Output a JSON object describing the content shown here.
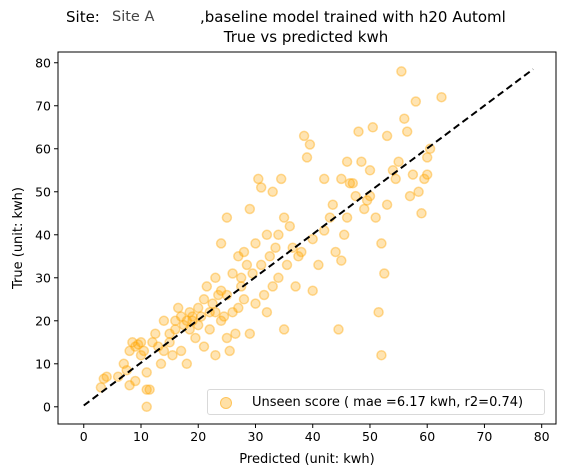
{
  "title": {
    "prefix": "Site:",
    "site_name": "Site A",
    "suffix": ",baseline model trained with h20 Automl",
    "line2": "True vs predicted kwh"
  },
  "colors": {
    "points": "#ffa500",
    "reference_line": "#000000"
  },
  "chart_data": {
    "type": "scatter",
    "xlabel": "Predicted (unit: kwh)",
    "ylabel": "True (unit: kwh)",
    "xlim": [
      -4.5,
      82.5
    ],
    "ylim": [
      -4,
      82.5
    ],
    "xticks": [
      0,
      10,
      20,
      30,
      40,
      50,
      60,
      70,
      80
    ],
    "yticks": [
      0,
      10,
      20,
      30,
      40,
      50,
      60,
      70,
      80
    ],
    "grid": false,
    "legend_position": "bottom-right",
    "series": [
      {
        "name": "Unseen score ( mae =6.17 kwh, r2=0.74)",
        "style": "circle-markers",
        "points": [
          [
            3,
            4.5
          ],
          [
            3.5,
            6.5
          ],
          [
            4,
            7
          ],
          [
            6,
            7
          ],
          [
            7,
            10
          ],
          [
            7.5,
            8.5
          ],
          [
            8,
            13
          ],
          [
            8.5,
            15
          ],
          [
            9,
            14
          ],
          [
            9.5,
            14.5
          ],
          [
            10,
            12
          ],
          [
            10.5,
            13
          ],
          [
            8,
            5
          ],
          [
            9,
            6
          ],
          [
            11,
            4
          ],
          [
            11.5,
            4
          ],
          [
            11,
            0
          ],
          [
            11,
            8
          ],
          [
            12,
            15
          ],
          [
            12.5,
            17
          ],
          [
            13,
            14
          ],
          [
            13.5,
            10
          ],
          [
            14,
            13
          ],
          [
            14,
            20
          ],
          [
            15,
            17
          ],
          [
            15.5,
            12
          ],
          [
            16,
            18
          ],
          [
            16,
            20
          ],
          [
            16.5,
            23
          ],
          [
            17,
            21
          ],
          [
            17,
            13
          ],
          [
            17.5,
            19
          ],
          [
            18,
            20
          ],
          [
            18,
            10
          ],
          [
            18.5,
            22
          ],
          [
            19,
            20
          ],
          [
            19.5,
            16
          ],
          [
            20,
            19
          ],
          [
            20,
            23
          ],
          [
            20.5,
            21
          ],
          [
            21,
            25
          ],
          [
            21,
            14
          ],
          [
            21.5,
            28
          ],
          [
            22,
            22
          ],
          [
            22,
            18
          ],
          [
            22.5,
            24
          ],
          [
            23,
            22
          ],
          [
            23,
            12
          ],
          [
            23.5,
            26
          ],
          [
            24,
            27
          ],
          [
            24,
            20
          ],
          [
            24.5,
            21
          ],
          [
            25,
            26
          ],
          [
            25,
            16
          ],
          [
            25.5,
            13
          ],
          [
            26,
            31
          ],
          [
            26,
            22
          ],
          [
            26.5,
            17
          ],
          [
            27,
            23
          ],
          [
            27,
            35
          ],
          [
            27.5,
            30
          ],
          [
            28,
            25
          ],
          [
            28,
            36
          ],
          [
            28.5,
            33
          ],
          [
            29,
            46
          ],
          [
            29,
            17
          ],
          [
            29.5,
            31
          ],
          [
            30,
            24
          ],
          [
            30,
            38
          ],
          [
            30.5,
            53
          ],
          [
            31,
            51
          ],
          [
            31,
            33
          ],
          [
            31.5,
            26
          ],
          [
            32,
            22
          ],
          [
            32,
            40
          ],
          [
            32.5,
            35
          ],
          [
            33,
            50
          ],
          [
            33,
            28
          ],
          [
            33.5,
            37
          ],
          [
            34,
            30
          ],
          [
            34,
            40
          ],
          [
            34.5,
            53
          ],
          [
            35,
            44
          ],
          [
            35,
            18
          ],
          [
            35.5,
            33
          ],
          [
            36,
            42
          ],
          [
            36.5,
            37
          ],
          [
            37,
            28
          ],
          [
            37.5,
            35
          ],
          [
            38,
            36
          ],
          [
            38.5,
            63
          ],
          [
            39,
            58
          ],
          [
            39.5,
            61
          ],
          [
            40,
            27
          ],
          [
            40,
            39
          ],
          [
            41,
            33
          ],
          [
            42,
            41
          ],
          [
            42,
            53
          ],
          [
            43,
            44
          ],
          [
            43.5,
            47
          ],
          [
            44,
            36
          ],
          [
            44.5,
            18
          ],
          [
            45,
            53
          ],
          [
            45,
            34
          ],
          [
            45.5,
            40
          ],
          [
            46,
            57
          ],
          [
            46,
            44
          ],
          [
            46.5,
            52
          ],
          [
            47,
            52
          ],
          [
            47.5,
            49
          ],
          [
            48,
            64
          ],
          [
            48.5,
            57
          ],
          [
            49,
            46
          ],
          [
            49.5,
            48
          ],
          [
            50,
            55
          ],
          [
            50,
            49
          ],
          [
            50.5,
            65
          ],
          [
            51,
            44
          ],
          [
            51.5,
            22
          ],
          [
            52,
            12
          ],
          [
            52,
            38
          ],
          [
            52.5,
            31
          ],
          [
            53,
            47
          ],
          [
            53,
            63
          ],
          [
            54,
            55
          ],
          [
            54.5,
            53
          ],
          [
            55,
            57
          ],
          [
            55.5,
            78
          ],
          [
            56,
            67
          ],
          [
            56.5,
            64
          ],
          [
            57,
            49
          ],
          [
            57.5,
            54
          ],
          [
            58,
            71
          ],
          [
            58.5,
            50
          ],
          [
            59,
            45
          ],
          [
            59.5,
            53
          ],
          [
            60,
            58
          ],
          [
            60,
            54
          ],
          [
            60.5,
            60
          ],
          [
            62.5,
            72
          ],
          [
            10,
            15
          ],
          [
            15,
            15
          ],
          [
            18.5,
            18
          ],
          [
            19,
            21
          ],
          [
            23,
            30
          ],
          [
            24,
            38
          ],
          [
            25,
            44
          ],
          [
            27.5,
            28
          ]
        ]
      },
      {
        "name": "",
        "style": "dashed-line",
        "points": [
          [
            0,
            0.3
          ],
          [
            78.5,
            78.5
          ]
        ]
      }
    ]
  }
}
